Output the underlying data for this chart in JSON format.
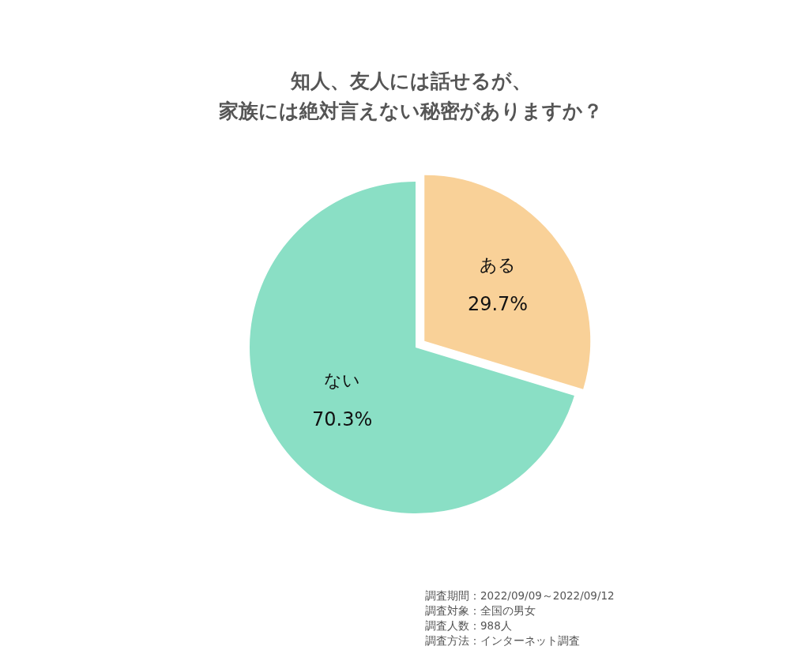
{
  "chart_data": {
    "type": "pie",
    "title": "知人、友人には話せるが、家族には絶対言えない秘密がありますか？",
    "categories": [
      "ある",
      "ない"
    ],
    "values": [
      29.7,
      70.3
    ],
    "value_labels": [
      "29.7%",
      "70.3%"
    ],
    "colors": [
      "#f9d198",
      "#8adfc5"
    ],
    "annotations": [
      "調査期間：2022/09/09～2022/09/12",
      "調査対象：全国の男女",
      "調査人数：988人",
      "調査方法：インターネット調査"
    ]
  }
}
